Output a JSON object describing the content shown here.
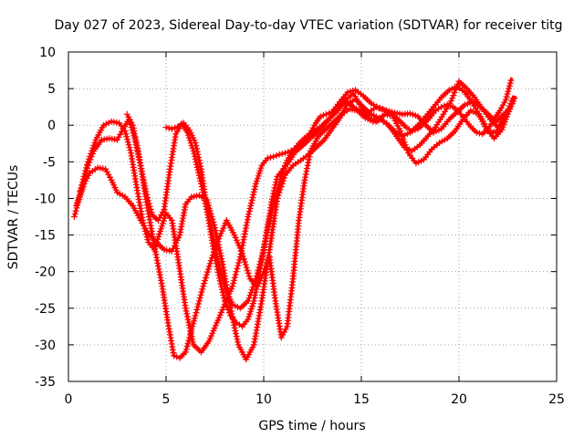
{
  "chart_data": {
    "type": "scatter",
    "title": "Day 027 of 2023, Sidereal Day-to-day VTEC variation (SDTVAR) for receiver titg",
    "xlabel": "GPS time / hours",
    "ylabel": "SDTVAR / TECUs",
    "xlim": [
      0,
      25
    ],
    "ylim": [
      -35,
      10
    ],
    "xticks": [
      0,
      5,
      10,
      15,
      20,
      25
    ],
    "yticks": [
      10,
      5,
      0,
      -5,
      -10,
      -15,
      -20,
      -25,
      -30,
      -35
    ],
    "grid": true,
    "legend": "none",
    "marker": "plus",
    "color": "#ff0000",
    "series": [
      {
        "x": [
          0.3,
          0.5,
          0.8,
          1.1,
          1.5,
          1.9,
          2.2,
          2.5,
          2.9,
          3.3,
          3.7,
          4.1,
          4.5,
          4.9,
          5.3,
          5.7,
          6.0,
          6.3,
          6.7,
          7.1,
          7.5,
          7.9,
          8.3,
          8.7,
          9.1,
          9.5,
          9.9,
          10.3,
          10.7,
          11.1,
          11.5,
          11.9,
          12.3,
          12.7,
          13.1,
          13.5,
          13.9,
          14.3,
          14.7,
          15.1,
          15.5,
          15.9,
          16.3,
          16.7,
          17.1,
          17.5,
          17.9,
          18.3,
          18.7,
          19.1,
          19.5,
          19.9,
          20.3,
          20.7,
          21.1,
          21.5,
          21.9,
          22.3,
          22.8
        ],
        "y": [
          -12.5,
          -10.5,
          -8,
          -6.5,
          -5.8,
          -6,
          -7.5,
          -9.2,
          -9.8,
          -11,
          -13,
          -14.8,
          -16,
          -17,
          -17.2,
          -15,
          -10.8,
          -9.8,
          -9.6,
          -10.2,
          -14,
          -19,
          -25,
          -30,
          -32,
          -30,
          -24,
          -17,
          -10,
          -6.8,
          -5.5,
          -4.8,
          -4,
          -3,
          -2,
          -0.5,
          1,
          3,
          3.5,
          2.5,
          1.5,
          1,
          0.2,
          -0.8,
          -1.5,
          -1,
          0,
          1.2,
          2.5,
          3.8,
          4.8,
          5.3,
          4.5,
          3,
          1.2,
          -0.8,
          -1,
          0.8,
          3.3
        ]
      },
      {
        "x": [
          0.4,
          0.7,
          1.0,
          1.3,
          1.7,
          2.1,
          2.5,
          2.8,
          3.1,
          3.4,
          3.7,
          4.0,
          4.3,
          4.6,
          4.9,
          5.2,
          5.5,
          5.8,
          6.1,
          6.4,
          6.8,
          7.2,
          7.6,
          8.0,
          8.4,
          8.8,
          9.2,
          9.6,
          10.0,
          10.3,
          10.6,
          10.9,
          11.2,
          11.5,
          11.8,
          12.2,
          12.6,
          13.0,
          13.4,
          13.8,
          14.2,
          14.6,
          15.0,
          15.4,
          15.8,
          16.2,
          16.6,
          17.0,
          17.4,
          17.8,
          18.2,
          18.6,
          19.0,
          19.4,
          19.8,
          20.2,
          20.6,
          21.0,
          21.4,
          21.8,
          22.2,
          22.6,
          22.9
        ],
        "y": [
          -11,
          -8.5,
          -5.5,
          -3.5,
          -2,
          -1.8,
          -2,
          -0.5,
          0.8,
          -1.8,
          -5.5,
          -9.5,
          -12.3,
          -13,
          -11.5,
          -6,
          -1.2,
          0.2,
          -1,
          -3.5,
          -8,
          -13,
          -18,
          -22,
          -24.5,
          -25,
          -24,
          -21,
          -17,
          -13,
          -10,
          -7,
          -4.8,
          -3.5,
          -2.5,
          -1.5,
          -0.8,
          0,
          1,
          2,
          3.5,
          4.3,
          2.5,
          1,
          0.5,
          1.5,
          1.3,
          -0.8,
          -3.8,
          -5.2,
          -4.7,
          -3.3,
          -2.4,
          -1.8,
          -0.8,
          0.8,
          2,
          1.5,
          -0.5,
          -1.8,
          -0.6,
          2.2,
          4
        ]
      },
      {
        "x": [
          0.6,
          1.0,
          1.4,
          1.8,
          2.2,
          2.6,
          2.9,
          3.2,
          3.5,
          3.8,
          4.1,
          4.4,
          4.7,
          5.0,
          5.3,
          5.6,
          6.0,
          6.4,
          6.8,
          7.2,
          7.6,
          8.0,
          8.4,
          8.8,
          9.2,
          9.6,
          9.9,
          10.2,
          10.5,
          10.8,
          11.1,
          11.4,
          11.7,
          12.0,
          12.3,
          12.6,
          12.9,
          13.2,
          13.5,
          13.9,
          14.3,
          14.7,
          15.1,
          15.5,
          15.9,
          16.3,
          16.7,
          17.1,
          17.5,
          17.9,
          18.3,
          18.7,
          19.1,
          19.5,
          19.9,
          20.3,
          20.7,
          21.1,
          21.5,
          21.9,
          22.3,
          22.7
        ],
        "y": [
          -9,
          -5,
          -2,
          0,
          0.5,
          0.3,
          -0.8,
          -3.8,
          -8.5,
          -13,
          -16,
          -17,
          -14.5,
          -12,
          -13,
          -18,
          -25,
          -30,
          -31,
          -29.5,
          -27,
          -24.5,
          -22,
          -18,
          -12.5,
          -8,
          -5.5,
          -4.5,
          -4.3,
          -4,
          -3.8,
          -3.5,
          -3.2,
          -2.5,
          -1.5,
          0,
          1.2,
          1.5,
          1.8,
          3.2,
          4.5,
          4.8,
          4,
          3,
          2.3,
          2,
          1.7,
          1.5,
          1.6,
          1.2,
          0,
          -1,
          -0.5,
          0.8,
          1.8,
          2.8,
          3.2,
          2.5,
          1.5,
          0.5,
          1.5,
          2.5
        ]
      },
      {
        "x": [
          3.0,
          3.3,
          3.6,
          4.0,
          4.4,
          4.8,
          5.1,
          5.4,
          5.7,
          6.0,
          6.2,
          6.5,
          6.9,
          7.3,
          7.7,
          8.1,
          8.5,
          8.9,
          9.3,
          9.7,
          10.0,
          10.3,
          10.6,
          10.9,
          11.2,
          11.5,
          11.8,
          12.1,
          12.4,
          12.8,
          13.2,
          13.6,
          14.0,
          14.4,
          14.8,
          15.2,
          15.6,
          16.0,
          16.4,
          16.8,
          17.2,
          17.6,
          18.0,
          18.4,
          18.8,
          19.2,
          19.6,
          20.0,
          20.4,
          20.8,
          21.2,
          21.6,
          22.0,
          22.4,
          22.8
        ],
        "y": [
          1.5,
          0,
          -4,
          -10.5,
          -16.5,
          -22,
          -27,
          -31.5,
          -31.8,
          -31,
          -29,
          -26,
          -22,
          -18.5,
          -15.5,
          -13,
          -15,
          -17.5,
          -21,
          -22,
          -20,
          -18,
          -24,
          -29,
          -27.5,
          -21,
          -13,
          -7.5,
          -3.5,
          -1.5,
          -0.5,
          0.5,
          1.5,
          2.2,
          2,
          1,
          0.5,
          0.8,
          0,
          -1.5,
          -3,
          -3.5,
          -2.7,
          -1.5,
          -0.3,
          1.5,
          3.3,
          6,
          5,
          3.8,
          2.2,
          0.8,
          -0.3,
          1.2,
          4
        ]
      },
      {
        "x": [
          5.0,
          5.3,
          5.6,
          5.9,
          6.2,
          6.5,
          6.8,
          7.1,
          7.4,
          7.7,
          8.0,
          8.3,
          8.6,
          8.9,
          9.2,
          9.5,
          9.8,
          10.1,
          10.4,
          10.7,
          11.0,
          11.3,
          11.6,
          11.9,
          12.2,
          12.5,
          12.8,
          13.1,
          13.4,
          13.7,
          14.0,
          14.3,
          14.6,
          14.9,
          15.2,
          15.5,
          15.8,
          16.1,
          16.4,
          16.7,
          17.0,
          17.3,
          17.6,
          17.9,
          18.2,
          18.5,
          18.8,
          19.1,
          19.4,
          19.7,
          20.0,
          20.3,
          20.6,
          20.9,
          21.2,
          21.5,
          21.8,
          22.1,
          22.4,
          22.7
        ],
        "y": [
          -0.3,
          -0.5,
          -0.2,
          0.3,
          -0.7,
          -2.4,
          -6,
          -11.5,
          -16.5,
          -20.5,
          -24,
          -26,
          -27,
          -27.5,
          -26.5,
          -24,
          -20,
          -15.5,
          -10.5,
          -7,
          -6,
          -5,
          -3.7,
          -3,
          -2.3,
          -1.5,
          -0.8,
          0,
          1,
          2.3,
          3.3,
          3.1,
          2.5,
          2,
          1.5,
          2,
          2.5,
          2.2,
          1.8,
          1.2,
          0.5,
          -0.3,
          -0.8,
          -0.5,
          0.2,
          1,
          2,
          2.5,
          2.8,
          2.5,
          1.8,
          0.8,
          -0.2,
          -1,
          -1.2,
          -0.5,
          0.8,
          2,
          3.5,
          6.5
        ]
      }
    ]
  }
}
